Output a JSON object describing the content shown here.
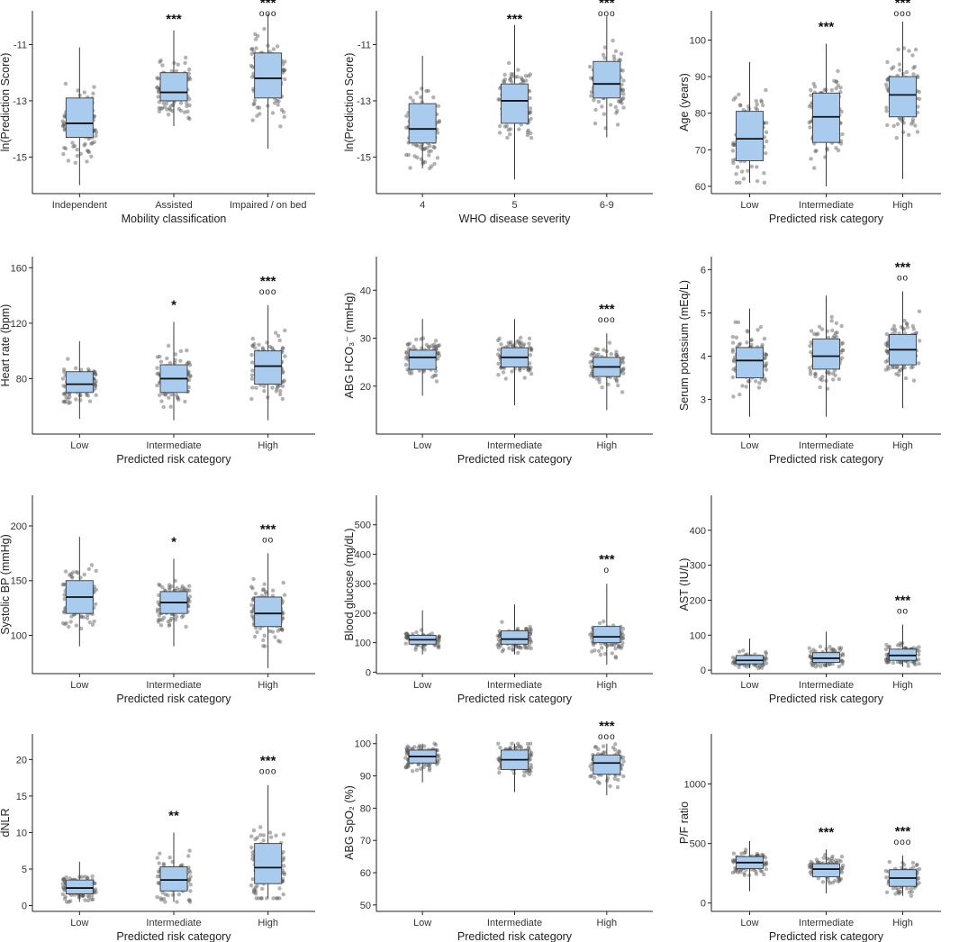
{
  "chart_data": [
    {
      "type": "box",
      "ylabel": "ln(Prediction Score)",
      "xlabel": "Mobility classification",
      "ylim": [
        -16.3,
        -9.8
      ],
      "yticks": [
        -15,
        -13,
        -11
      ],
      "categories": [
        "Independent",
        "Assisted",
        "Impaired / on bed"
      ],
      "boxes": [
        {
          "lo": -16,
          "q1": -14.3,
          "med": -13.8,
          "q3": -12.9,
          "hi": -11.1
        },
        {
          "lo": -13.9,
          "q1": -13.0,
          "med": -12.7,
          "q3": -12.0,
          "hi": -10.5
        },
        {
          "lo": -14.7,
          "q1": -12.9,
          "med": -12.2,
          "q3": -11.3,
          "hi": -9.9
        }
      ],
      "sig": [
        {
          "stars": "",
          "circles": ""
        },
        {
          "stars": "***",
          "circles": ""
        },
        {
          "stars": "***",
          "circles": "ooo"
        }
      ]
    },
    {
      "type": "box",
      "ylabel": "ln(Prediction Score)",
      "xlabel": "WHO disease severity",
      "ylim": [
        -16.3,
        -9.8
      ],
      "yticks": [
        -15,
        -13,
        -11
      ],
      "categories": [
        "4",
        "5",
        "6-9"
      ],
      "boxes": [
        {
          "lo": -15.4,
          "q1": -14.5,
          "med": -14.0,
          "q3": -13.1,
          "hi": -11.4
        },
        {
          "lo": -15.8,
          "q1": -13.8,
          "med": -13.0,
          "q3": -12.4,
          "hi": -10.3
        },
        {
          "lo": -14.3,
          "q1": -12.9,
          "med": -12.4,
          "q3": -11.6,
          "hi": -10.0
        }
      ],
      "sig": [
        {
          "stars": "",
          "circles": ""
        },
        {
          "stars": "***",
          "circles": ""
        },
        {
          "stars": "***",
          "circles": "ooo"
        }
      ]
    },
    {
      "type": "box",
      "ylabel": "Age (years)",
      "xlabel": "Predicted risk category",
      "ylim": [
        58,
        108
      ],
      "yticks": [
        60,
        70,
        80,
        90,
        100
      ],
      "categories": [
        "Low",
        "Intermediate",
        "High"
      ],
      "boxes": [
        {
          "lo": 61,
          "q1": 67,
          "med": 73,
          "q3": 80.5,
          "hi": 94
        },
        {
          "lo": 60,
          "q1": 72,
          "med": 79,
          "q3": 85.5,
          "hi": 99
        },
        {
          "lo": 62,
          "q1": 79,
          "med": 85,
          "q3": 90,
          "hi": 105
        }
      ],
      "sig": [
        {
          "stars": "",
          "circles": ""
        },
        {
          "stars": "***",
          "circles": ""
        },
        {
          "stars": "***",
          "circles": "ooo"
        }
      ]
    },
    {
      "type": "box",
      "ylabel": "Heart rate (bpm)",
      "xlabel": "Predicted risk category",
      "ylim": [
        40,
        168
      ],
      "yticks": [
        80,
        120,
        160
      ],
      "categories": [
        "Low",
        "Intermediate",
        "High"
      ],
      "boxes": [
        {
          "lo": 51,
          "q1": 70,
          "med": 76,
          "q3": 85,
          "hi": 107
        },
        {
          "lo": 50,
          "q1": 70,
          "med": 80,
          "q3": 90,
          "hi": 121
        },
        {
          "lo": 50,
          "q1": 76,
          "med": 89,
          "q3": 100,
          "hi": 133
        }
      ],
      "sig": [
        {
          "stars": "",
          "circles": ""
        },
        {
          "stars": "*",
          "circles": ""
        },
        {
          "stars": "***",
          "circles": "ooo"
        }
      ]
    },
    {
      "type": "box",
      "ylabel": "ABG HCO₃⁻ (mmHg)",
      "xlabel": "Predicted risk category",
      "ylim": [
        10,
        47
      ],
      "yticks": [
        20,
        30,
        40
      ],
      "categories": [
        "Low",
        "Intermediate",
        "High"
      ],
      "boxes": [
        {
          "lo": 18,
          "q1": 23.5,
          "med": 26,
          "q3": 27.5,
          "hi": 34
        },
        {
          "lo": 16,
          "q1": 24,
          "med": 26,
          "q3": 28,
          "hi": 34
        },
        {
          "lo": 15,
          "q1": 22,
          "med": 24,
          "q3": 26,
          "hi": 31
        }
      ],
      "sig": [
        {
          "stars": "",
          "circles": ""
        },
        {
          "stars": "",
          "circles": ""
        },
        {
          "stars": "***",
          "circles": "ooo"
        }
      ]
    },
    {
      "type": "box",
      "ylabel": "Serum potassium (mEq/L)",
      "xlabel": "Predicted risk category",
      "ylim": [
        2.2,
        6.3
      ],
      "yticks": [
        3,
        4,
        5,
        6
      ],
      "categories": [
        "Low",
        "Intermediate",
        "High"
      ],
      "boxes": [
        {
          "lo": 2.6,
          "q1": 3.5,
          "med": 3.9,
          "q3": 4.2,
          "hi": 5.1
        },
        {
          "lo": 2.6,
          "q1": 3.7,
          "med": 4.0,
          "q3": 4.4,
          "hi": 5.4
        },
        {
          "lo": 2.8,
          "q1": 3.8,
          "med": 4.15,
          "q3": 4.5,
          "hi": 5.5
        }
      ],
      "sig": [
        {
          "stars": "",
          "circles": ""
        },
        {
          "stars": "",
          "circles": ""
        },
        {
          "stars": "***",
          "circles": "oo"
        }
      ]
    },
    {
      "type": "box",
      "ylabel": "Systolic BP (mmHg)",
      "xlabel": "Predicted risk category",
      "ylim": [
        65,
        228
      ],
      "yticks": [
        100,
        150,
        200
      ],
      "categories": [
        "Low",
        "Intermediate",
        "High"
      ],
      "boxes": [
        {
          "lo": 90,
          "q1": 120,
          "med": 135,
          "q3": 150,
          "hi": 190
        },
        {
          "lo": 90,
          "q1": 120,
          "med": 130,
          "q3": 140,
          "hi": 170
        },
        {
          "lo": 70,
          "q1": 108,
          "med": 120,
          "q3": 135,
          "hi": 175
        }
      ],
      "sig": [
        {
          "stars": "",
          "circles": ""
        },
        {
          "stars": "*",
          "circles": ""
        },
        {
          "stars": "***",
          "circles": "oo"
        }
      ]
    },
    {
      "type": "box",
      "ylabel": "Blood glucose (mg/dL)",
      "xlabel": "Predicted risk category",
      "ylim": [
        -5,
        600
      ],
      "yticks": [
        0,
        100,
        200,
        300,
        400,
        500
      ],
      "categories": [
        "Low",
        "Intermediate",
        "High"
      ],
      "boxes": [
        {
          "lo": 60,
          "q1": 95,
          "med": 110,
          "q3": 125,
          "hi": 210
        },
        {
          "lo": 60,
          "q1": 95,
          "med": 112,
          "q3": 140,
          "hi": 230
        },
        {
          "lo": 25,
          "q1": 100,
          "med": 120,
          "q3": 155,
          "hi": 300
        }
      ],
      "sig": [
        {
          "stars": "",
          "circles": ""
        },
        {
          "stars": "",
          "circles": ""
        },
        {
          "stars": "***",
          "circles": "o"
        }
      ]
    },
    {
      "type": "box",
      "ylabel": "AST (IU/L)",
      "xlabel": "Predicted risk category",
      "ylim": [
        -10,
        500
      ],
      "yticks": [
        0,
        100,
        200,
        300,
        400
      ],
      "categories": [
        "Low",
        "Intermediate",
        "High"
      ],
      "boxes": [
        {
          "lo": 5,
          "q1": 18,
          "med": 28,
          "q3": 42,
          "hi": 90
        },
        {
          "lo": 8,
          "q1": 22,
          "med": 34,
          "q3": 50,
          "hi": 110
        },
        {
          "lo": 10,
          "q1": 28,
          "med": 42,
          "q3": 60,
          "hi": 130
        }
      ],
      "sig": [
        {
          "stars": "",
          "circles": ""
        },
        {
          "stars": "",
          "circles": ""
        },
        {
          "stars": "***",
          "circles": "oo"
        }
      ]
    },
    {
      "type": "box",
      "ylabel": "dNLR",
      "xlabel": "Predicted risk category",
      "ylim": [
        -0.8,
        23.5
      ],
      "yticks": [
        0,
        5,
        10,
        15,
        20
      ],
      "categories": [
        "Low",
        "Intermediate",
        "High"
      ],
      "boxes": [
        {
          "lo": 0.5,
          "q1": 1.6,
          "med": 2.4,
          "q3": 3.5,
          "hi": 6
        },
        {
          "lo": 0.5,
          "q1": 2.0,
          "med": 3.5,
          "q3": 5.3,
          "hi": 10
        },
        {
          "lo": 1,
          "q1": 3.0,
          "med": 5.2,
          "q3": 8.5,
          "hi": 16.5
        }
      ],
      "sig": [
        {
          "stars": "",
          "circles": ""
        },
        {
          "stars": "**",
          "circles": ""
        },
        {
          "stars": "***",
          "circles": "ooo"
        }
      ]
    },
    {
      "type": "box",
      "ylabel": "ABG SpO₂ (%)",
      "xlabel": "Predicted risk category",
      "ylim": [
        48,
        103
      ],
      "yticks": [
        50,
        60,
        70,
        80,
        90,
        100
      ],
      "categories": [
        "Low",
        "Intermediate",
        "High"
      ],
      "boxes": [
        {
          "lo": 88,
          "q1": 94,
          "med": 96,
          "q3": 98,
          "hi": 100
        },
        {
          "lo": 85,
          "q1": 92,
          "med": 95,
          "q3": 98,
          "hi": 100
        },
        {
          "lo": 84,
          "q1": 90.5,
          "med": 94,
          "q3": 96.5,
          "hi": 100
        }
      ],
      "sig": [
        {
          "stars": "",
          "circles": ""
        },
        {
          "stars": "",
          "circles": ""
        },
        {
          "stars": "***",
          "circles": "ooo"
        }
      ]
    },
    {
      "type": "box",
      "ylabel": "P/F ratio",
      "xlabel": "Predicted risk category",
      "ylim": [
        -70,
        1420
      ],
      "yticks": [
        0,
        500,
        1000
      ],
      "categories": [
        "Low",
        "Intermediate",
        "High"
      ],
      "boxes": [
        {
          "lo": 100,
          "q1": 290,
          "med": 340,
          "q3": 390,
          "hi": 520
        },
        {
          "lo": 80,
          "q1": 220,
          "med": 285,
          "q3": 330,
          "hi": 450
        },
        {
          "lo": 60,
          "q1": 140,
          "med": 210,
          "q3": 280,
          "hi": 400
        }
      ],
      "sig": [
        {
          "stars": "",
          "circles": ""
        },
        {
          "stars": "***",
          "circles": ""
        },
        {
          "stars": "***",
          "circles": "ooo"
        }
      ]
    }
  ]
}
